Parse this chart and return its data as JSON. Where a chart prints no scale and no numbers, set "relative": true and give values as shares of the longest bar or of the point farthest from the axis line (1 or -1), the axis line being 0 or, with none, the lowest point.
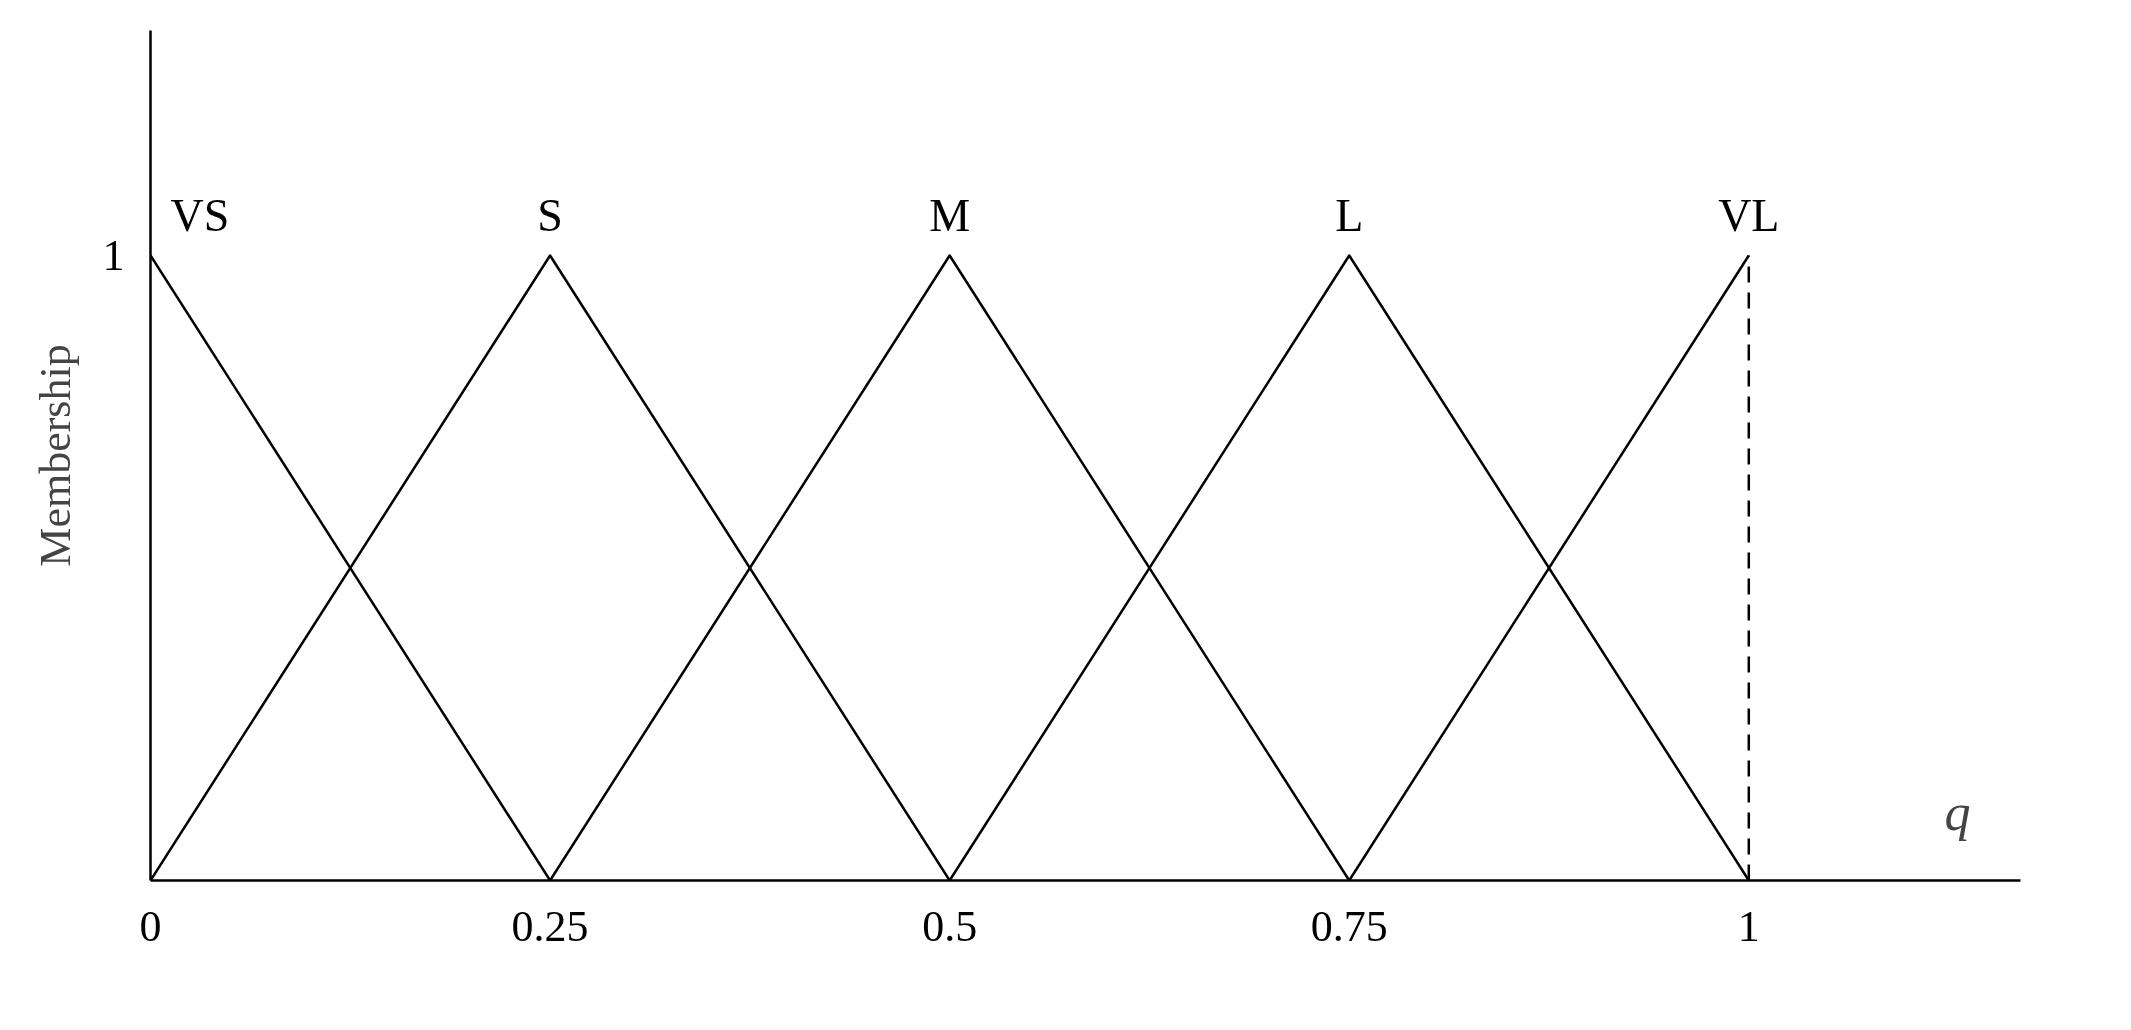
{
  "chart_data": {
    "type": "line",
    "xlabel": "q",
    "ylabel": "Membership",
    "relative": true,
    "annotations": [
      "1"
    ],
    "xlim": [
      0,
      1.17
    ],
    "xticks": [
      0,
      0.25,
      0.5,
      0.75,
      1
    ],
    "grid": false,
    "marker": "none",
    "line_style": "solid",
    "series": [
      {
        "name": "VS",
        "color": "#000000",
        "x": [
          0,
          0.25
        ],
        "values": [
          1,
          0
        ]
      },
      {
        "name": "S",
        "color": "#000000",
        "x": [
          0,
          0.25,
          0.5
        ],
        "values": [
          0,
          1,
          0
        ]
      },
      {
        "name": "M",
        "color": "#000000",
        "x": [
          0.25,
          0.5,
          0.75
        ],
        "values": [
          0,
          1,
          0
        ]
      },
      {
        "name": "L",
        "color": "#000000",
        "x": [
          0.5,
          0.75,
          1
        ],
        "values": [
          0,
          1,
          0
        ]
      },
      {
        "name": "VL",
        "color": "#000000",
        "x": [
          0.75,
          1
        ],
        "values": [
          0,
          1
        ]
      }
    ],
    "ref_lines": [
      {
        "axis": "x",
        "value": 1,
        "color": "#000000",
        "line_style": "dashed"
      }
    ]
  }
}
